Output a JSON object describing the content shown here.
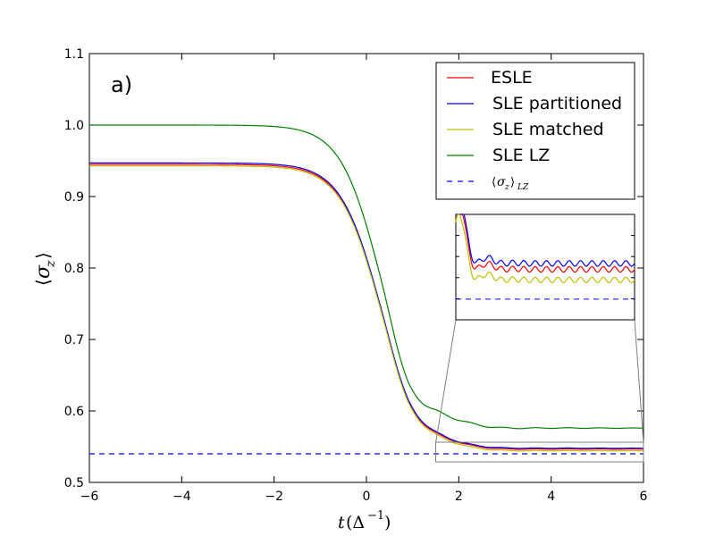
{
  "chart_data": {
    "type": "line",
    "panel_label": "a)",
    "xlabel": "t(Δ⁻¹)",
    "ylabel": "⟨σz⟩",
    "xlim": [
      -6,
      6
    ],
    "ylim": [
      0.5,
      1.1
    ],
    "xticks": [
      -6,
      -4,
      -2,
      0,
      2,
      4,
      6
    ],
    "xtick_labels": [
      "−6",
      "−4",
      "−2",
      "0",
      "2",
      "4",
      "6"
    ],
    "yticks": [
      0.5,
      0.6,
      0.7,
      0.8,
      0.9,
      1.0,
      1.1
    ],
    "ytick_labels": [
      "0.5",
      "0.6",
      "0.7",
      "0.8",
      "0.9",
      "1.0",
      "1.1"
    ],
    "legend_position": "top-right",
    "series": [
      {
        "name": "ESLE",
        "color": "#ff0000",
        "style": "solid",
        "start": 0.945,
        "final": 0.5465,
        "osc": 0.0065
      },
      {
        "name": "SLE partitioned",
        "color": "#0000ff",
        "style": "solid",
        "start": 0.947,
        "final": 0.5478,
        "osc": 0.0065
      },
      {
        "name": "SLE matched",
        "color": "#bfbf00",
        "style": "solid",
        "start": 0.943,
        "final": 0.5442,
        "osc": 0.0065
      },
      {
        "name": "SLE LZ",
        "color": "#008000",
        "style": "solid",
        "start": 1.0,
        "final": 0.576,
        "osc": 0.012
      },
      {
        "name": "⟨σz⟩LZ",
        "color": "#0000ff",
        "style": "dashed",
        "constant": 0.54
      }
    ],
    "inset": {
      "source_xlim": [
        1.5,
        6
      ],
      "source_ylim": [
        0.53,
        0.555
      ],
      "legend": "zoom of tail region"
    }
  }
}
